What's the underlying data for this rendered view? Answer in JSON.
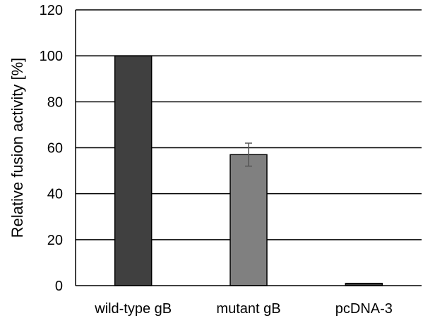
{
  "chart_data": {
    "type": "bar",
    "title": "",
    "xlabel": "",
    "ylabel": "Relative fusion activity [%]",
    "categories": [
      "wild-type gB",
      "mutant gB",
      "pcDNA-3"
    ],
    "values": [
      100,
      57,
      1
    ],
    "error": [
      null,
      5,
      null
    ],
    "ylim": [
      0,
      120
    ],
    "yticks": [
      0,
      20,
      40,
      60,
      80,
      100,
      120
    ],
    "grid": true,
    "legend": "none",
    "bar_colors": [
      "#404040",
      "#808080",
      "#404040"
    ]
  }
}
